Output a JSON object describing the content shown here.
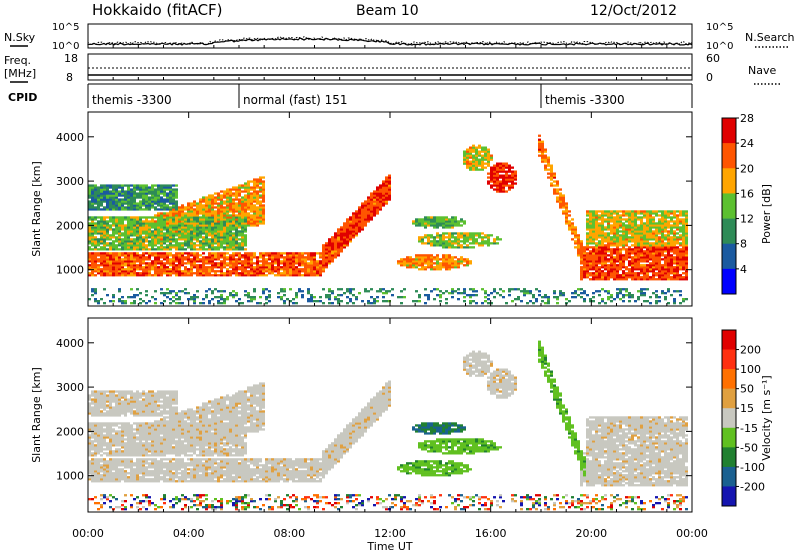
{
  "header": {
    "station": "Hokkaido (fitACF)",
    "beam": "Beam 10",
    "date": "12/Oct/2012"
  },
  "noise_panel": {
    "left_label": "N.Sky",
    "right_label": "N.Search",
    "left_ticks": [
      "10^5",
      "10^0"
    ],
    "right_ticks": [
      "10^5",
      "10^0"
    ]
  },
  "freq_panel": {
    "left_label_1": "Freq.",
    "left_label_2": "[MHz]",
    "right_label": "Nave",
    "left_ticks": [
      "18",
      "8"
    ],
    "right_ticks": [
      "60",
      "0"
    ]
  },
  "cpid_panel": {
    "label": "CPID",
    "segments": [
      {
        "start_hour": 0,
        "end_hour": 6,
        "text": "themis -3300"
      },
      {
        "start_hour": 6,
        "end_hour": 18,
        "text": "normal (fast) 151"
      },
      {
        "start_hour": 18,
        "end_hour": 24,
        "text": "themis -3300"
      }
    ]
  },
  "chart_data": [
    {
      "type": "heatmap",
      "name": "power",
      "ylabel": "Slant Range [km]",
      "ylim": [
        180,
        4560
      ],
      "yticks": [
        "1000",
        "2000",
        "3000",
        "4000"
      ],
      "colorbar": {
        "label": "Power [dB]",
        "ticks": [
          "4",
          "8",
          "12",
          "16",
          "20",
          "24",
          "28"
        ],
        "range": [
          0,
          30
        ],
        "colors": [
          "#0000ff",
          "#1a5aa0",
          "#2e8b57",
          "#5cc030",
          "#ffa500",
          "#ff5500",
          "#e00000"
        ]
      }
    },
    {
      "type": "heatmap",
      "name": "velocity",
      "ylabel": "Slant Range [km]",
      "ylim": [
        180,
        4560
      ],
      "yticks": [
        "1000",
        "2000",
        "3000",
        "4000"
      ],
      "colorbar": {
        "label": "Velocity [m s⁻¹]",
        "ticks": [
          "200",
          "100",
          "50",
          "15",
          "-15",
          "-50",
          "-100",
          "-200"
        ],
        "colors": [
          "#1515b0",
          "#1a6090",
          "#208030",
          "#60c020",
          "#c8c8c0",
          "#e0a040",
          "#ff7000",
          "#ff3010",
          "#e00000"
        ]
      }
    }
  ],
  "time_axis": {
    "label": "Time UT",
    "ticks": [
      "00:00",
      "04:00",
      "08:00",
      "12:00",
      "16:00",
      "20:00",
      "00:00"
    ]
  }
}
